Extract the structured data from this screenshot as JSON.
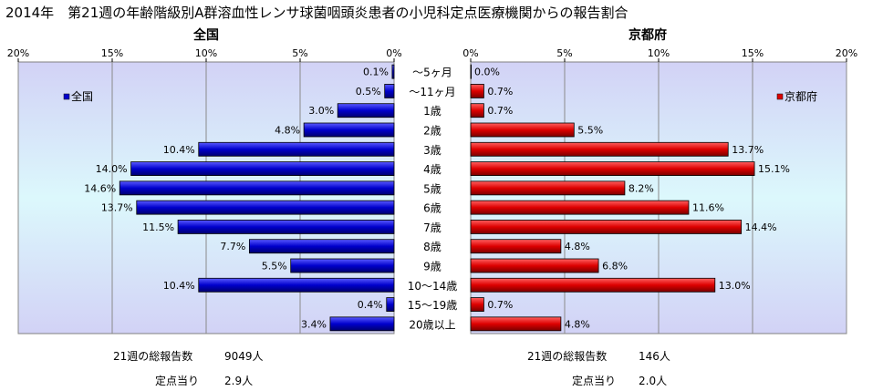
{
  "chart_data": {
    "type": "bar",
    "title": "2014年　第21週の年齢階級別A群溶血性レンサ球菌咽頭炎患者の小児科定点医療機関からの報告割合",
    "categories": [
      "～5ヶ月",
      "～11ヶ月",
      "1歳",
      "2歳",
      "3歳",
      "4歳",
      "5歳",
      "6歳",
      "7歳",
      "8歳",
      "9歳",
      "10～14歳",
      "15～19歳",
      "20歳以上"
    ],
    "panels": [
      {
        "title": "全国",
        "legend": "全国",
        "color": "#0000cc",
        "xlim": [
          0,
          20
        ],
        "ticks": [
          "0%",
          "5%",
          "10%",
          "15%",
          "20%"
        ],
        "values": [
          0.1,
          0.5,
          3.0,
          4.8,
          10.4,
          14.0,
          14.6,
          13.7,
          11.5,
          7.7,
          5.5,
          10.4,
          0.4,
          3.4
        ],
        "value_labels": [
          "0.1%",
          "0.5%",
          "3.0%",
          "4.8%",
          "10.4%",
          "14.0%",
          "14.6%",
          "13.7%",
          "11.5%",
          "7.7%",
          "5.5%",
          "10.4%",
          "0.4%",
          "3.4%"
        ]
      },
      {
        "title": "京都府",
        "legend": "京都府",
        "color": "#dd0000",
        "xlim": [
          0,
          20
        ],
        "ticks": [
          "0%",
          "5%",
          "10%",
          "15%",
          "20%"
        ],
        "values": [
          0.0,
          0.7,
          0.7,
          5.5,
          13.7,
          15.1,
          8.2,
          11.6,
          14.4,
          4.8,
          6.8,
          13.0,
          0.7,
          4.8
        ],
        "value_labels": [
          "0.0%",
          "0.7%",
          "0.7%",
          "5.5%",
          "13.7%",
          "15.1%",
          "8.2%",
          "11.6%",
          "14.4%",
          "4.8%",
          "6.8%",
          "13.0%",
          "0.7%",
          "4.8%"
        ]
      }
    ]
  },
  "footer": {
    "left": {
      "total_label": "21週の総報告数",
      "total_value": "9049人",
      "per_label": "定点当り",
      "per_value": "2.9人"
    },
    "right": {
      "total_label": "21週の総報告数",
      "total_value": "146人",
      "per_label": "定点当り",
      "per_value": "2.0人"
    }
  }
}
